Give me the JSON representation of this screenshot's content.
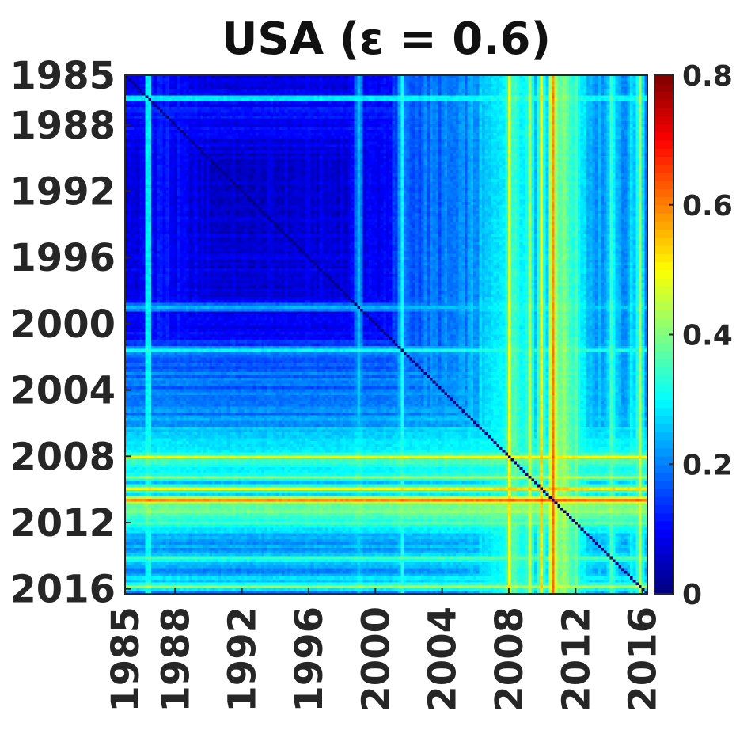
{
  "chart_data": {
    "type": "heatmap",
    "title": "USA (ε = 0.6)",
    "xlabel": "",
    "ylabel": "",
    "x_range": [
      1985,
      2016.3
    ],
    "y_range": [
      1985,
      2016.3
    ],
    "x_tick_labels": [
      "1985",
      "1988",
      "1992",
      "1996",
      "2000",
      "2004",
      "2008",
      "2012",
      "2016"
    ],
    "x_tick_values": [
      1985,
      1988,
      1992,
      1996,
      2000,
      2004,
      2008,
      2012,
      2016
    ],
    "y_tick_labels": [
      "1985",
      "1988",
      "1992",
      "1996",
      "2000",
      "2004",
      "2008",
      "2012",
      "2016"
    ],
    "y_tick_values": [
      1985,
      1988,
      1992,
      1996,
      2000,
      2004,
      2008,
      2012,
      2016
    ],
    "colorbar": {
      "colormap": "jet",
      "range": [
        0,
        0.8
      ],
      "tick_labels": [
        "0",
        "0.2",
        "0.4",
        "0.6",
        "0.8"
      ],
      "tick_values": [
        0,
        0.2,
        0.4,
        0.6,
        0.8
      ]
    },
    "diagonal_value": 0,
    "baseline_value": 0.14,
    "time_profile_years": [
      1985,
      1986,
      1987,
      1988,
      1990,
      1992,
      1995,
      1998,
      2000,
      2001,
      2002,
      2003,
      2005,
      2006,
      2007,
      2008,
      2008.5,
      2009,
      2010,
      2010.5,
      2011,
      2012,
      2013,
      2014,
      2015,
      2015.5,
      2016,
      2016.3
    ],
    "time_profile_values": [
      0.08,
      0.09,
      0.13,
      0.1,
      0.07,
      0.05,
      0.07,
      0.08,
      0.1,
      0.13,
      0.18,
      0.2,
      0.2,
      0.24,
      0.28,
      0.36,
      0.38,
      0.3,
      0.28,
      0.32,
      0.42,
      0.36,
      0.25,
      0.24,
      0.24,
      0.3,
      0.22,
      0.2
    ],
    "bright_stripes": [
      {
        "year": 1986.4,
        "value": 0.3
      },
      {
        "year": 1999.0,
        "value": 0.28
      },
      {
        "year": 2001.6,
        "value": 0.3
      },
      {
        "year": 2008.0,
        "value": 0.48
      },
      {
        "year": 2009.3,
        "value": 0.45
      },
      {
        "year": 2010.0,
        "value": 0.5
      },
      {
        "year": 2010.6,
        "value": 0.62
      },
      {
        "year": 2014.2,
        "value": 0.34
      },
      {
        "year": 2015.9,
        "value": 0.42
      }
    ]
  }
}
